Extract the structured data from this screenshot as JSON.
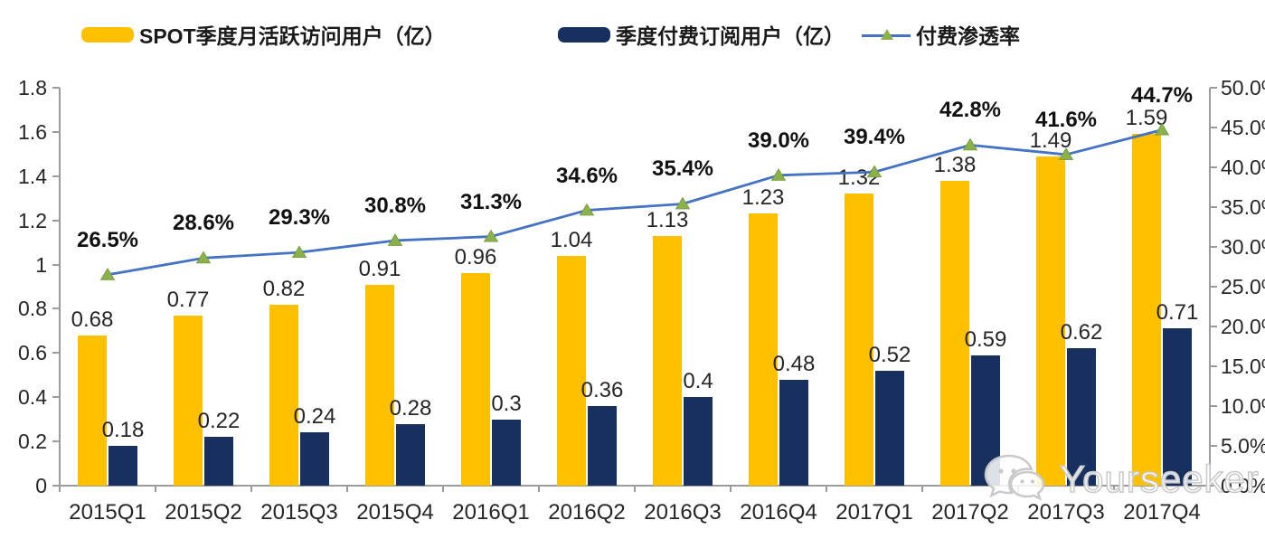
{
  "legend": [
    {
      "label": "SPOT季度月活跃访问用户（亿）",
      "swatch": "bar",
      "color": "#FFC000"
    },
    {
      "label": "季度付费订阅用户（亿）",
      "swatch": "bar",
      "color": "#17305F"
    },
    {
      "label": "付费渗透率",
      "swatch": "line",
      "line_color": "#4472C4",
      "marker_color": "#8CB04A"
    }
  ],
  "chart_data": {
    "type": "combo",
    "title": "",
    "categories": [
      "2015Q1",
      "2015Q2",
      "2015Q3",
      "2015Q4",
      "2016Q1",
      "2016Q2",
      "2016Q3",
      "2016Q4",
      "2017Q1",
      "2017Q2",
      "2017Q3",
      "2017Q4"
    ],
    "series": [
      {
        "name": "SPOT季度月活跃访问用户（亿）",
        "type": "bar",
        "axis": "left",
        "color": "#FFC000",
        "values": [
          0.68,
          0.77,
          0.82,
          0.91,
          0.96,
          1.04,
          1.13,
          1.23,
          1.32,
          1.38,
          1.49,
          1.59
        ],
        "labels": [
          "0.68",
          "0.77",
          "0.82",
          "0.91",
          "0.96",
          "1.04",
          "1.13",
          "1.23",
          "1.32",
          "1.38",
          "1.49",
          "1.59"
        ]
      },
      {
        "name": "季度付费订阅用户（亿）",
        "type": "bar",
        "axis": "left",
        "color": "#17305F",
        "values": [
          0.18,
          0.22,
          0.24,
          0.28,
          0.3,
          0.36,
          0.4,
          0.48,
          0.52,
          0.59,
          0.62,
          0.71
        ],
        "labels": [
          "0.18",
          "0.22",
          "0.24",
          "0.28",
          "0.3",
          "0.36",
          "0.4",
          "0.48",
          "0.52",
          "0.59",
          "0.62",
          "0.71"
        ]
      },
      {
        "name": "付费渗透率",
        "type": "line",
        "axis": "right",
        "color": "#4472C4",
        "marker": "triangle",
        "marker_color": "#8CB04A",
        "values": [
          26.5,
          28.6,
          29.3,
          30.8,
          31.3,
          34.6,
          35.4,
          39.0,
          39.4,
          42.8,
          41.6,
          44.7
        ],
        "labels": [
          "26.5%",
          "28.6%",
          "29.3%",
          "30.8%",
          "31.3%",
          "34.6%",
          "35.4%",
          "39.0%",
          "39.4%",
          "42.8%",
          "41.6%",
          "44.7%"
        ]
      }
    ],
    "left_axis": {
      "min": 0,
      "max": 1.8,
      "step": 0.2,
      "ticks": [
        "1.8",
        "1.6",
        "1.4",
        "1.2",
        "1",
        "0.8",
        "0.6",
        "0.4",
        "0.2",
        "0"
      ]
    },
    "right_axis": {
      "min": 0,
      "max": 50,
      "step": 5,
      "ticks": [
        "50.0%",
        "45.0%",
        "40.0%",
        "35.0%",
        "30.0%",
        "25.0%",
        "20.0%",
        "15.0%",
        "10.0%",
        "5.0%",
        "0.0%"
      ]
    },
    "grid": false,
    "legend_position": "top"
  },
  "watermark": {
    "text": "Yourseeker",
    "icon": "wechat-icon"
  }
}
